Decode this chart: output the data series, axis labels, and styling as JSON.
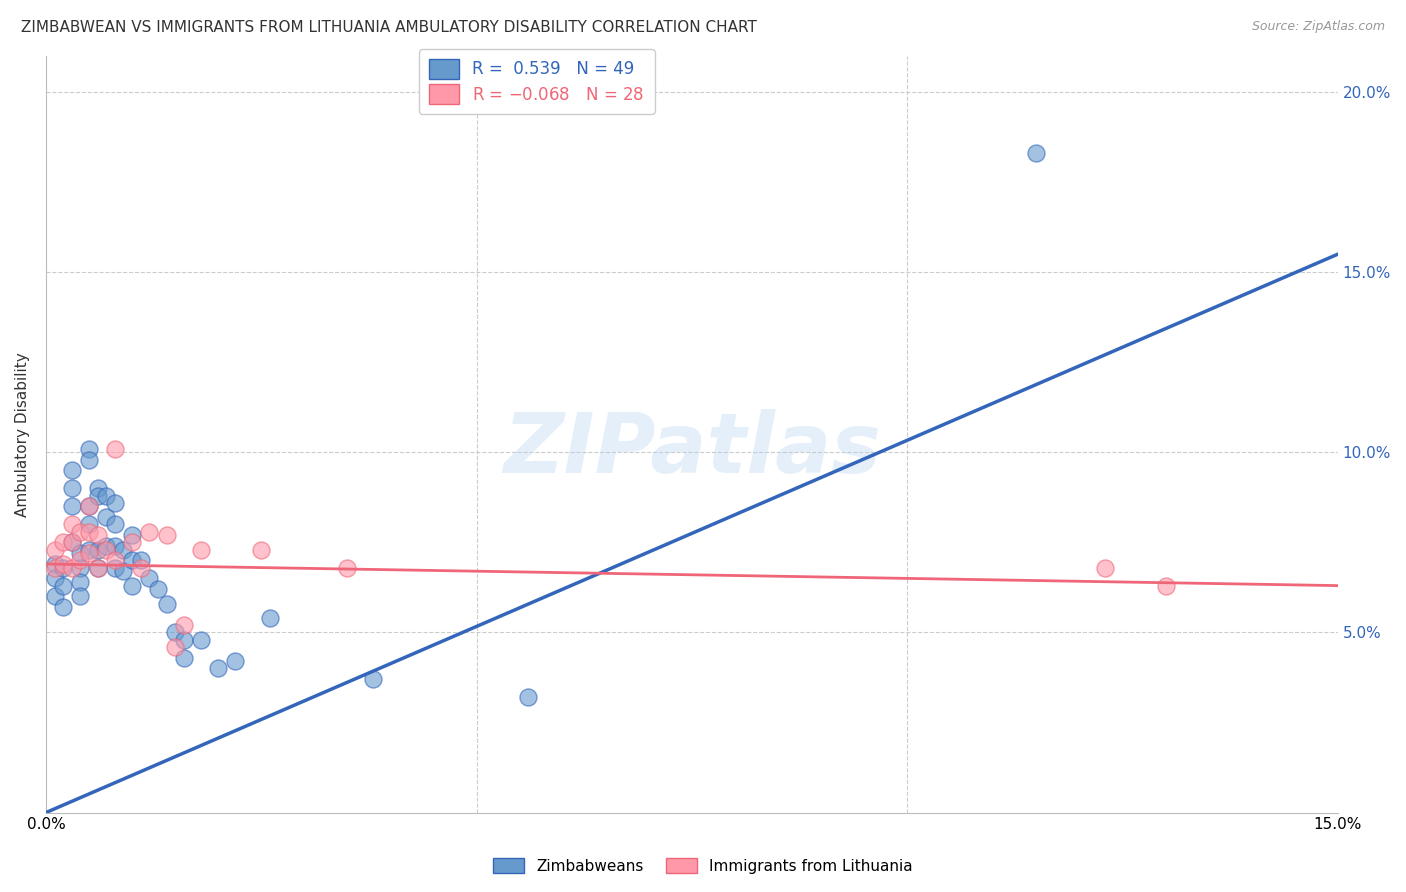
{
  "title": "ZIMBABWEAN VS IMMIGRANTS FROM LITHUANIA AMBULATORY DISABILITY CORRELATION CHART",
  "source": "Source: ZipAtlas.com",
  "ylabel": "Ambulatory Disability",
  "xmin": 0.0,
  "xmax": 0.15,
  "ymin": 0.0,
  "ymax": 0.21,
  "yticks": [
    0.05,
    0.1,
    0.15,
    0.2
  ],
  "ytick_labels": [
    "5.0%",
    "10.0%",
    "15.0%",
    "20.0%"
  ],
  "xticks": [
    0.0,
    0.025,
    0.05,
    0.075,
    0.1,
    0.125,
    0.15
  ],
  "xtick_labels": [
    "0.0%",
    "",
    "",
    "",
    "",
    "",
    "15.0%"
  ],
  "blue_R": 0.539,
  "blue_N": 49,
  "pink_R": -0.068,
  "pink_N": 28,
  "blue_color": "#6699CC",
  "pink_color": "#FF99AA",
  "blue_line_color": "#3366BB",
  "pink_line_color": "#EE6677",
  "watermark": "ZIPatlas",
  "legend_label_blue": "Zimbabweans",
  "legend_label_pink": "Immigrants from Lithuania",
  "blue_line_x0": 0.0,
  "blue_line_y0": 0.0,
  "blue_line_x1": 0.15,
  "blue_line_y1": 0.155,
  "pink_line_x0": 0.0,
  "pink_line_x1": 0.15,
  "pink_line_y0": 0.069,
  "pink_line_y1": 0.063,
  "blue_x": [
    0.001,
    0.001,
    0.001,
    0.002,
    0.002,
    0.002,
    0.003,
    0.003,
    0.003,
    0.003,
    0.004,
    0.004,
    0.004,
    0.004,
    0.005,
    0.005,
    0.005,
    0.005,
    0.005,
    0.006,
    0.006,
    0.006,
    0.006,
    0.007,
    0.007,
    0.007,
    0.008,
    0.008,
    0.008,
    0.008,
    0.009,
    0.009,
    0.01,
    0.01,
    0.01,
    0.011,
    0.012,
    0.013,
    0.014,
    0.015,
    0.016,
    0.016,
    0.018,
    0.02,
    0.022,
    0.026,
    0.038,
    0.056,
    0.115
  ],
  "blue_y": [
    0.069,
    0.065,
    0.06,
    0.068,
    0.063,
    0.057,
    0.095,
    0.09,
    0.085,
    0.075,
    0.072,
    0.068,
    0.064,
    0.06,
    0.101,
    0.098,
    0.085,
    0.08,
    0.073,
    0.09,
    0.088,
    0.073,
    0.068,
    0.088,
    0.082,
    0.074,
    0.086,
    0.08,
    0.074,
    0.068,
    0.073,
    0.067,
    0.077,
    0.07,
    0.063,
    0.07,
    0.065,
    0.062,
    0.058,
    0.05,
    0.048,
    0.043,
    0.048,
    0.04,
    0.042,
    0.054,
    0.037,
    0.032,
    0.183
  ],
  "pink_x": [
    0.001,
    0.001,
    0.002,
    0.002,
    0.003,
    0.003,
    0.003,
    0.004,
    0.004,
    0.005,
    0.005,
    0.005,
    0.006,
    0.006,
    0.007,
    0.008,
    0.008,
    0.01,
    0.011,
    0.012,
    0.014,
    0.015,
    0.016,
    0.018,
    0.025,
    0.035,
    0.123,
    0.13
  ],
  "pink_y": [
    0.073,
    0.068,
    0.075,
    0.069,
    0.08,
    0.075,
    0.068,
    0.078,
    0.07,
    0.085,
    0.078,
    0.072,
    0.077,
    0.068,
    0.073,
    0.101,
    0.07,
    0.075,
    0.068,
    0.078,
    0.077,
    0.046,
    0.052,
    0.073,
    0.073,
    0.068,
    0.068,
    0.063
  ]
}
